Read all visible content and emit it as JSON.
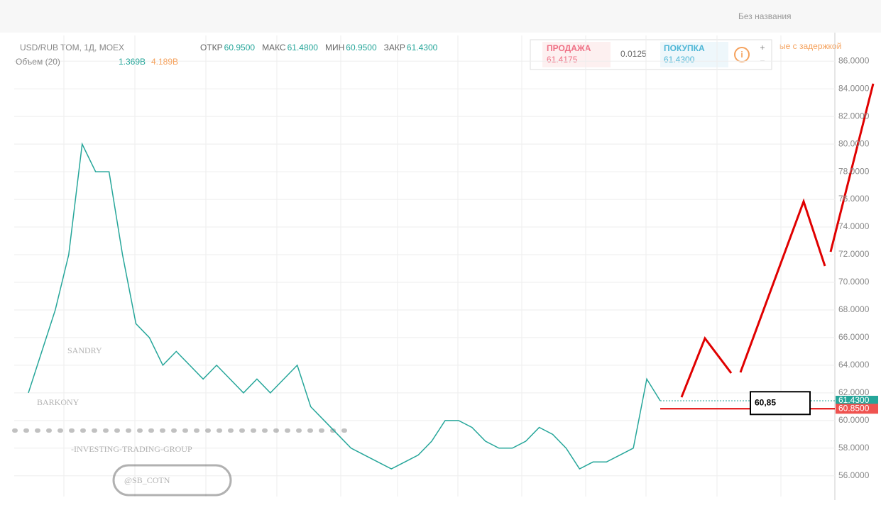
{
  "chart_data": {
    "type": "line",
    "title": "USD/RUB TOM, 1Д, MOEX",
    "header": [
      {
        "label": "ОТКР",
        "value": "60.9500"
      },
      {
        "label": "МАКС",
        "value": "61.4800"
      },
      {
        "label": "МИН",
        "value": "60.9500"
      },
      {
        "label": "ЗАКР",
        "value": "61.4300"
      }
    ],
    "volume": {
      "label": "Объем (20)",
      "values": [
        "1.369B",
        "4.189B"
      ]
    },
    "quote": {
      "sell_label": "ПРОДАЖА",
      "sell": "61.4175",
      "spread": "0.0125",
      "buy_label": "ПОКУПКА",
      "buy": "61.4300"
    },
    "layout_name": "Без названия",
    "delay_note": "ые с задержкой",
    "watermark": [
      "SANDRY",
      "BARKONY",
      "-INVESTING-TRADING-GROUP",
      "@SB_COTN"
    ],
    "series": [
      {
        "name": "USD/RUB",
        "color": "#26a69a",
        "values": [
          62,
          65,
          68,
          72,
          80,
          78,
          78,
          72,
          67,
          66,
          64,
          65,
          64,
          63,
          64,
          63,
          62,
          63,
          62,
          63,
          64,
          61,
          60,
          59,
          58,
          57.5,
          57,
          56.5,
          57,
          57.5,
          58.5,
          60,
          60,
          59.5,
          58.5,
          58,
          58,
          58.5,
          59.5,
          59,
          58,
          56.5,
          57,
          57,
          57.5,
          58,
          63,
          61.43
        ]
      }
    ],
    "ylim": [
      54.5,
      87.5
    ],
    "yticks": [
      {
        "value": 56,
        "label": "56.0000"
      },
      {
        "value": 58,
        "label": "58.0000"
      },
      {
        "value": 60,
        "label": "60.0000"
      },
      {
        "value": 62,
        "label": "62.0000"
      },
      {
        "value": 64,
        "label": "64.0000"
      },
      {
        "value": 66,
        "label": "66.0000"
      },
      {
        "value": 68,
        "label": "68.0000"
      },
      {
        "value": 70,
        "label": "70.0000"
      },
      {
        "value": 72,
        "label": "72.0000"
      },
      {
        "value": 74,
        "label": "74.0000"
      },
      {
        "value": 76,
        "label": "76.0000"
      },
      {
        "value": 78,
        "label": "78.0000"
      },
      {
        "value": 80,
        "label": "80.0000"
      },
      {
        "value": 82,
        "label": "82.0000"
      },
      {
        "value": 84,
        "label": "84.0000"
      },
      {
        "value": 86,
        "label": "86.0000"
      }
    ],
    "price_labels": [
      {
        "value": 61.43,
        "label": "61.4300",
        "color": "#26a69a"
      },
      {
        "value": 60.85,
        "label": "60.8500",
        "color": "#ef5350"
      }
    ],
    "annotation": {
      "value": 60.85,
      "label": "60,85",
      "color": "#e00000"
    },
    "grid": true
  }
}
